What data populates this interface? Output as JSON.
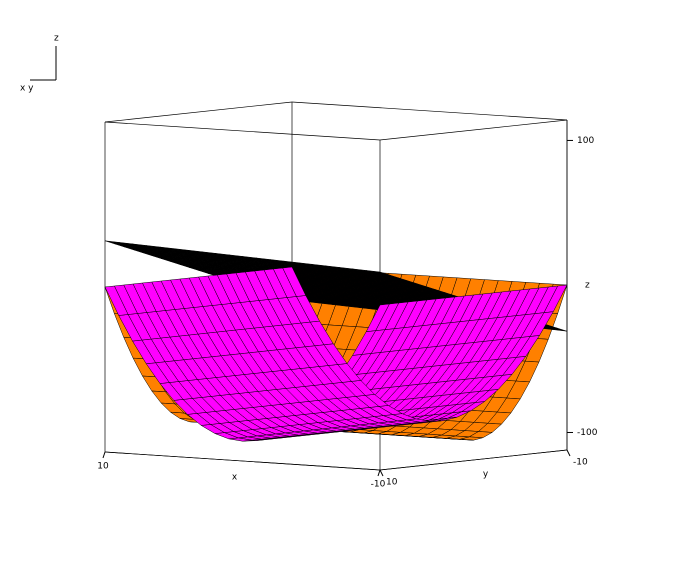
{
  "chart_data": {
    "type": "surface3d",
    "xlabel": "x",
    "ylabel": "y",
    "zlabel": "z",
    "xlim": [
      -10,
      10
    ],
    "ylim": [
      -10,
      10
    ],
    "zlim": [
      -112,
      114
    ],
    "xticks": [
      -10,
      10
    ],
    "yticks": [
      -10,
      10
    ],
    "zticks": [
      -100,
      100
    ],
    "series": [
      {
        "color": "#ff8000"
      },
      {
        "color": "#000000"
      },
      {
        "color": "#ff00ff"
      }
    ]
  },
  "orientation": {
    "z": "z",
    "xy": "x y"
  }
}
